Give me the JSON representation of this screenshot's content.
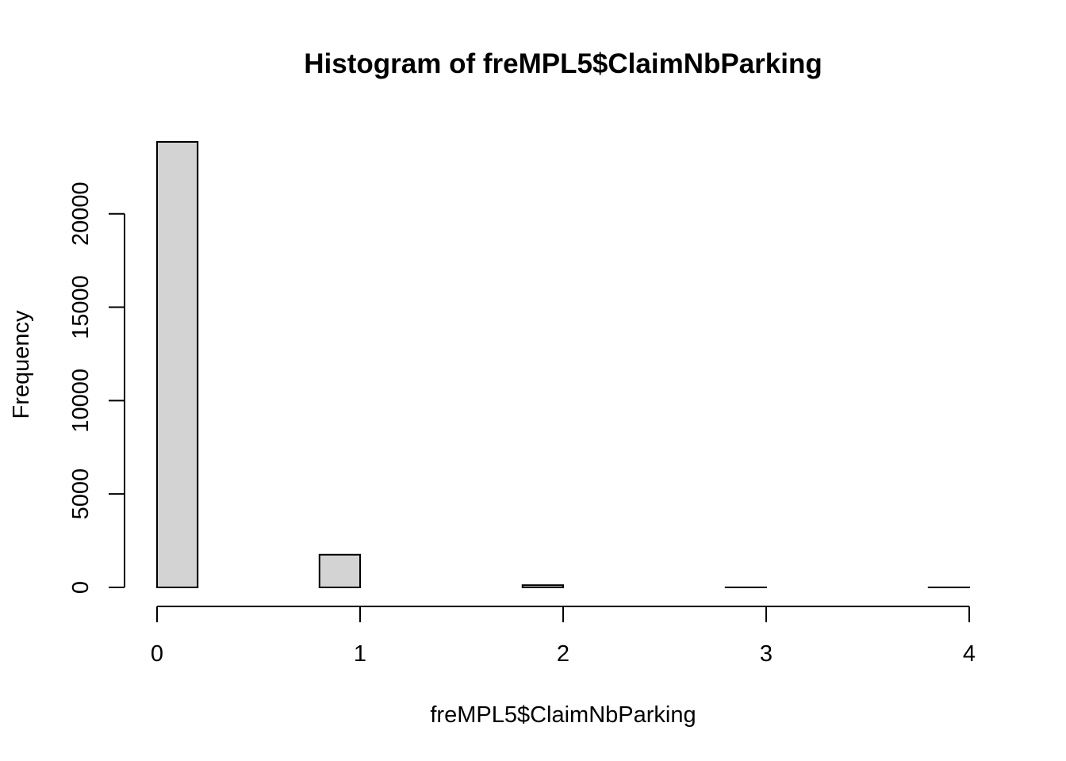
{
  "chart_data": {
    "type": "bar",
    "title": "Histogram of freMPL5$ClaimNbParking",
    "xlabel": "freMPL5$ClaimNbParking",
    "ylabel": "Frequency",
    "bin_edges": [
      0,
      0.2,
      0.4,
      0.6,
      0.8,
      1.0,
      1.2,
      1.4,
      1.6,
      1.8,
      2.0,
      2.2,
      2.4,
      2.6,
      2.8,
      3.0,
      3.2,
      3.4,
      3.6,
      3.8,
      4.0
    ],
    "values": [
      23850,
      0,
      0,
      0,
      1750,
      0,
      0,
      0,
      0,
      120,
      0,
      0,
      0,
      0,
      2,
      0,
      0,
      0,
      0,
      1
    ],
    "xlim": [
      0,
      4
    ],
    "ylim": [
      0,
      23850
    ],
    "x_ticks": [
      0,
      1,
      2,
      3,
      4
    ],
    "x_tick_labels": [
      "0",
      "1",
      "2",
      "3",
      "4"
    ],
    "y_ticks": [
      0,
      5000,
      10000,
      15000,
      20000
    ],
    "y_tick_labels": [
      "0",
      "5000",
      "10000",
      "15000",
      "20000"
    ],
    "bar_fill": "#d3d3d3",
    "bar_stroke": "#000000",
    "grid": false
  }
}
